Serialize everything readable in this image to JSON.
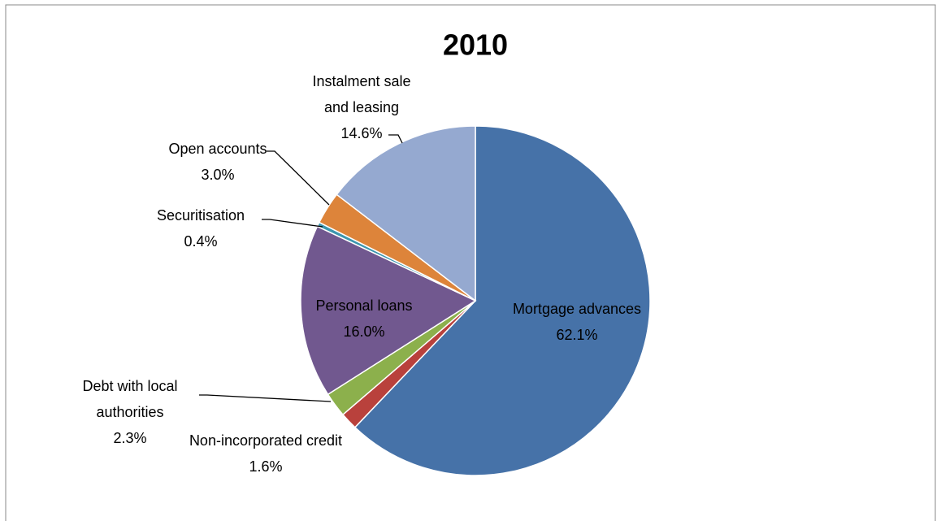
{
  "chart_data": {
    "type": "pie",
    "title": "2010",
    "categories": [
      "Mortgage advances",
      "Non-incorporated credit",
      "Debt with local authorities",
      "Personal loans",
      "Securitisation",
      "Open accounts",
      "Instalment sale and leasing"
    ],
    "values": [
      62.1,
      1.6,
      2.3,
      16.0,
      0.4,
      3.0,
      14.6
    ],
    "value_labels": [
      "62.1%",
      "1.6%",
      "2.3%",
      "16.0%",
      "0.4%",
      "3.0%",
      "14.6%"
    ],
    "colors": [
      "#4672a8",
      "#b9413c",
      "#8cb04c",
      "#71588f",
      "#3d96ae",
      "#dd843a",
      "#95a9d0"
    ]
  }
}
